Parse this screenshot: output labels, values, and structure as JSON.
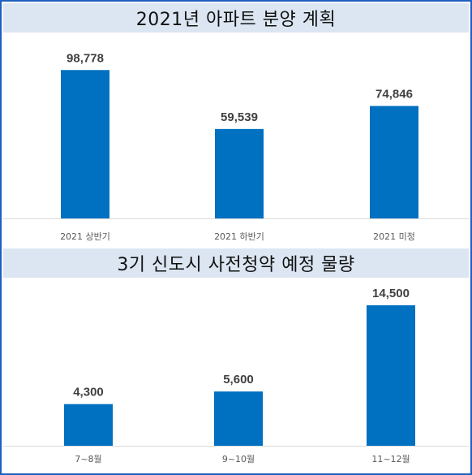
{
  "colors": {
    "bar": "#0070c0",
    "title_bg": "#dce6f2",
    "border": "#1f5fbf"
  },
  "chart_data": [
    {
      "type": "bar",
      "title": "2021년 아파트 분양 계획",
      "categories": [
        "2021 상반기",
        "2021 하반기",
        "2021 미정"
      ],
      "values": [
        98778,
        59539,
        74846
      ],
      "value_labels": [
        "98,778",
        "59,539",
        "74,846"
      ],
      "ylim": [
        0,
        100000
      ]
    },
    {
      "type": "bar",
      "title": "3기 신도시 사전청약 예정 물량",
      "categories": [
        "7~8월",
        "9~10월",
        "11~12월"
      ],
      "values": [
        4300,
        5600,
        14500
      ],
      "value_labels": [
        "4,300",
        "5,600",
        "14,500"
      ],
      "ylim": [
        0,
        15000
      ]
    }
  ]
}
